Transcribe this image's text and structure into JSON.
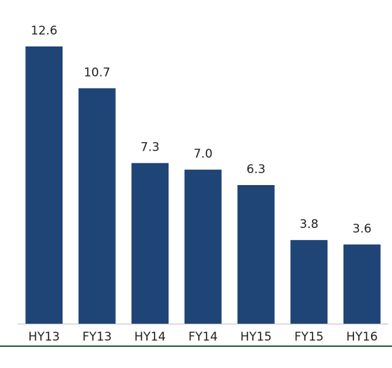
{
  "chart_data": {
    "type": "bar",
    "categories": [
      "HY13",
      "FY13",
      "HY14",
      "FY14",
      "HY15",
      "FY15",
      "HY16"
    ],
    "values": [
      12.6,
      10.7,
      7.3,
      7.0,
      6.3,
      3.8,
      3.6
    ],
    "value_labels": [
      "12.6",
      "10.7",
      "7.3",
      "7.0",
      "6.3",
      "3.8",
      "3.6"
    ],
    "color": "#1f4476",
    "ylim": [
      0,
      12.6
    ]
  }
}
